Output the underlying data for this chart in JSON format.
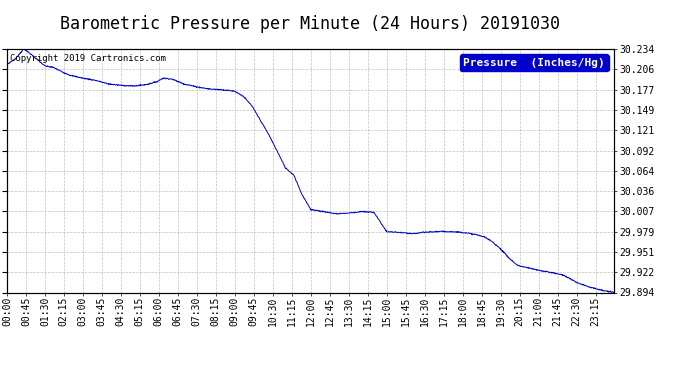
{
  "title": "Barometric Pressure per Minute (24 Hours) 20191030",
  "copyright": "Copyright 2019 Cartronics.com",
  "legend_label": "Pressure  (Inches/Hg)",
  "line_color": "#0000CC",
  "background_color": "#ffffff",
  "plot_bg_color": "#ffffff",
  "grid_color": "#b0b0b0",
  "legend_bg_color": "#0000CC",
  "legend_text_color": "#ffffff",
  "yticks": [
    29.894,
    29.922,
    29.951,
    29.979,
    30.007,
    30.036,
    30.064,
    30.092,
    30.121,
    30.149,
    30.177,
    30.206,
    30.234
  ],
  "ymin": 29.894,
  "ymax": 30.234,
  "total_minutes": 1440,
  "x_labels_minutes": [
    0,
    45,
    90,
    135,
    180,
    225,
    270,
    315,
    360,
    405,
    450,
    495,
    540,
    585,
    630,
    675,
    720,
    765,
    810,
    855,
    900,
    945,
    990,
    1035,
    1080,
    1125,
    1170,
    1215,
    1260,
    1305,
    1350,
    1395
  ],
  "x_labels": [
    "00:00",
    "00:45",
    "01:30",
    "02:15",
    "03:00",
    "03:45",
    "04:30",
    "05:15",
    "06:00",
    "06:45",
    "07:30",
    "08:15",
    "09:00",
    "09:45",
    "10:30",
    "11:15",
    "12:00",
    "12:45",
    "13:30",
    "14:15",
    "15:00",
    "15:45",
    "16:30",
    "17:15",
    "18:00",
    "18:45",
    "19:30",
    "20:15",
    "21:00",
    "21:45",
    "22:30",
    "23:15"
  ],
  "title_fontsize": 12,
  "copyright_fontsize": 6.5,
  "tick_fontsize": 7,
  "legend_fontsize": 8,
  "waypoints_x": [
    0,
    20,
    40,
    60,
    90,
    110,
    130,
    150,
    180,
    210,
    240,
    270,
    300,
    330,
    355,
    370,
    390,
    420,
    450,
    480,
    510,
    540,
    560,
    580,
    600,
    620,
    640,
    660,
    680,
    700,
    720,
    750,
    780,
    810,
    840,
    870,
    900,
    930,
    960,
    990,
    1020,
    1050,
    1080,
    1110,
    1130,
    1150,
    1170,
    1190,
    1210,
    1230,
    1260,
    1290,
    1320,
    1350,
    1380,
    1410,
    1439
  ],
  "waypoints_y": [
    30.212,
    30.22,
    30.234,
    30.225,
    30.21,
    30.208,
    30.202,
    30.197,
    30.193,
    30.19,
    30.185,
    30.183,
    30.182,
    30.184,
    30.188,
    30.193,
    30.192,
    30.185,
    30.181,
    30.178,
    30.177,
    30.175,
    30.168,
    30.155,
    30.135,
    30.115,
    30.092,
    30.068,
    30.058,
    30.03,
    30.01,
    30.007,
    30.004,
    30.005,
    30.007,
    30.006,
    29.979,
    29.978,
    29.976,
    29.978,
    29.979,
    29.979,
    29.978,
    29.975,
    29.972,
    29.965,
    29.955,
    29.942,
    29.932,
    29.929,
    29.925,
    29.922,
    29.918,
    29.908,
    29.902,
    29.897,
    29.894
  ]
}
